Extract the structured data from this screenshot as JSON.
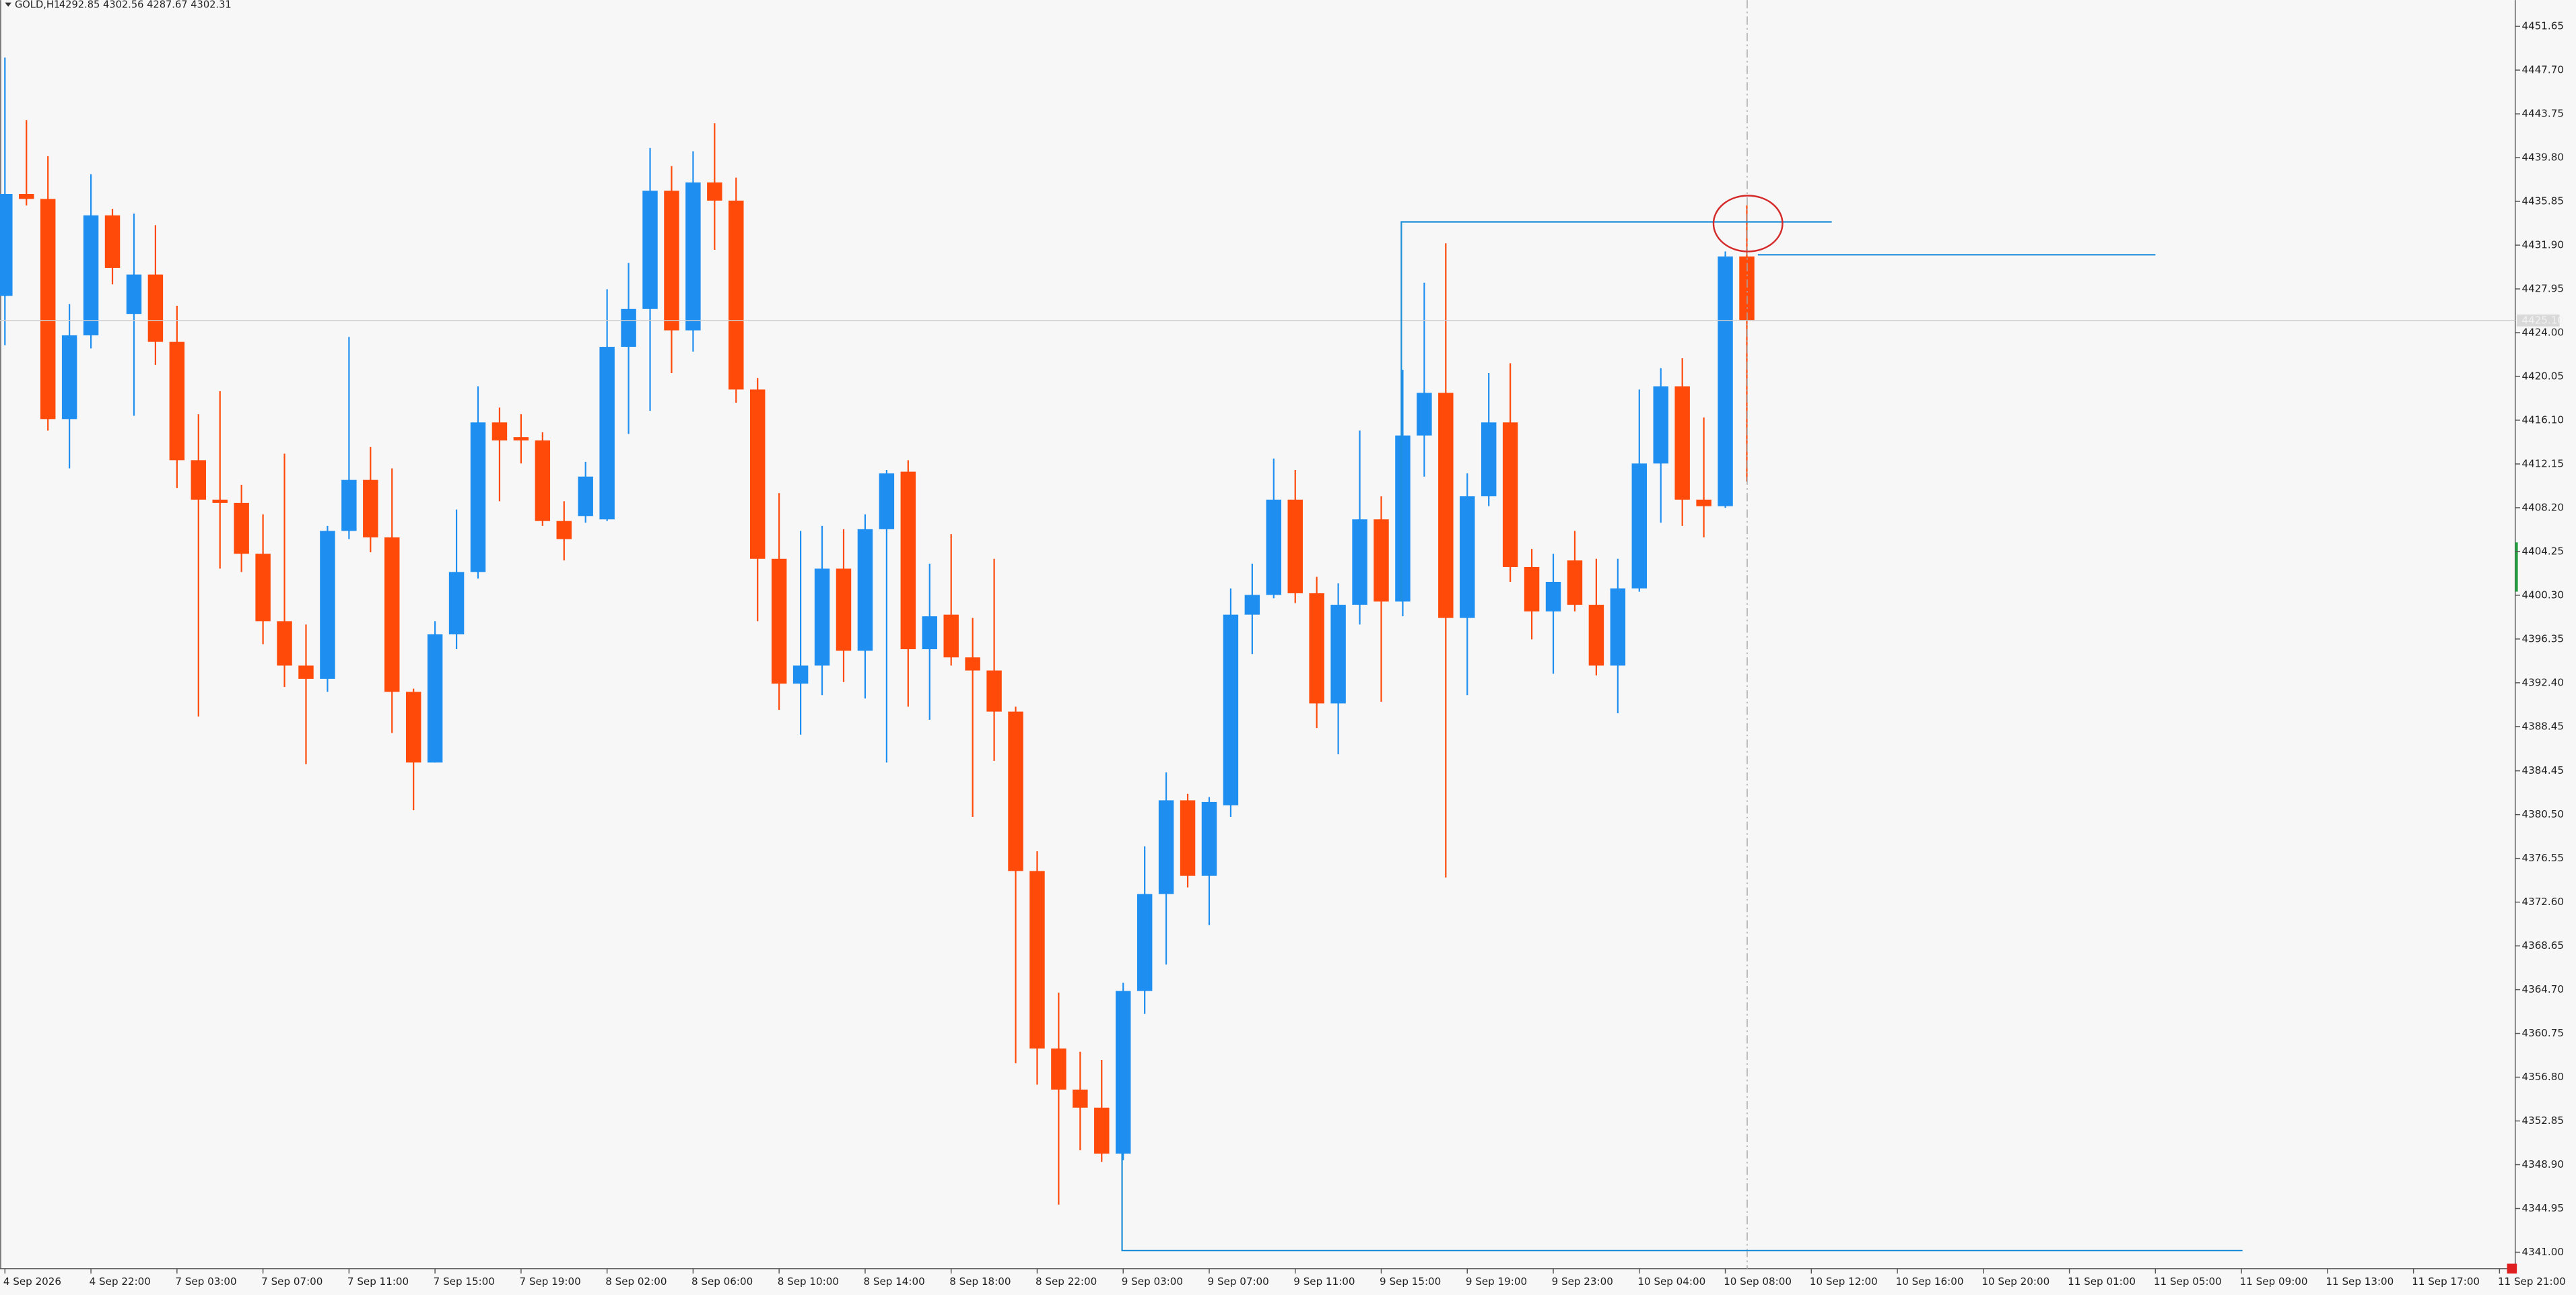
{
  "chart_data": {
    "type": "candlestick",
    "title": "GOLD,H1",
    "subtitle": "4292.85 4302.56 4287.67 4302.31",
    "up_color": "#1e8ff0",
    "down_color": "#ff4a0a",
    "grid": false,
    "last_price_label": "4425.10",
    "ylim": [
      4339.52,
      4454.02
    ],
    "yticks": [
      4451.65,
      {
        "value": 4447.7,
        "label": "4447.70"
      },
      4443.75,
      {
        "value": 4439.8,
        "label": "4439.80"
      },
      4435.85,
      {
        "value": 4431.9,
        "label": "4431.90"
      },
      4427.95,
      {
        "value": 4424,
        "label": "4424.00"
      },
      4420.05,
      {
        "value": 4416.1,
        "label": "4416.10"
      },
      4412.15,
      {
        "value": 4408.2,
        "label": "4408.20"
      },
      4404.25,
      {
        "value": 4400.3,
        "label": "4400.30"
      },
      4396.35,
      {
        "value": 4392.4,
        "label": "4392.40"
      },
      4388.45,
      4384.45,
      {
        "value": 4380.5,
        "label": "4380.50"
      },
      4376.55,
      {
        "value": 4372.6,
        "label": "4372.60"
      },
      4368.65,
      {
        "value": 4364.7,
        "label": "4364.70"
      },
      4360.75,
      {
        "value": 4356.8,
        "label": "4356.80"
      },
      4352.85,
      {
        "value": 4348.9,
        "label": "4348.90"
      },
      4344.95,
      {
        "value": 4341,
        "label": "4341.00"
      }
    ],
    "categories": [
      "4 Sep 2026",
      null,
      null,
      null,
      "4 Sep 22:00",
      null,
      null,
      null,
      "7 Sep 03:00",
      null,
      null,
      null,
      "7 Sep 07:00",
      null,
      null,
      null,
      "7 Sep 11:00",
      null,
      null,
      null,
      "7 Sep 15:00",
      null,
      null,
      null,
      "7 Sep 19:00",
      null,
      null,
      null,
      "8 Sep 02:00",
      null,
      null,
      null,
      "8 Sep 06:00",
      null,
      null,
      null,
      "8 Sep 10:00",
      null,
      null,
      null,
      "8 Sep 14:00",
      null,
      null,
      null,
      "8 Sep 18:00",
      null,
      null,
      null,
      "8 Sep 22:00",
      null,
      null,
      null,
      "9 Sep 03:00",
      null,
      null,
      null,
      "9 Sep 07:00",
      null,
      null,
      null,
      "9 Sep 11:00",
      null,
      null,
      null,
      "9 Sep 15:00",
      null,
      null,
      null,
      "9 Sep 19:00",
      null,
      null,
      null,
      "9 Sep 23:00",
      null,
      null,
      null,
      "10 Sep 04:00",
      null,
      null,
      null,
      "10 Sep 08:00",
      null,
      null,
      null,
      "10 Sep 12:00",
      null,
      null,
      null,
      "10 Sep 16:00",
      null,
      null,
      null,
      "10 Sep 20:00",
      null,
      null,
      null,
      "11 Sep 01:00",
      null,
      null,
      null,
      "11 Sep 05:00",
      null,
      null,
      null,
      "11 Sep 09:00",
      null,
      null,
      null,
      "11 Sep 13:00",
      null,
      null,
      null,
      "11 Sep 17:00",
      null,
      null,
      null,
      "11 Sep 21:00"
    ],
    "open": [
      4427.32,
      4436.52,
      4436.07,
      4416.2,
      4423.76,
      4434.59,
      4425.69,
      4429.25,
      4423.17,
      4412.49,
      4408.93,
      4408.63,
      4404.04,
      4397.96,
      4393.95,
      4392.76,
      4406.11,
      4410.71,
      4405.52,
      4391.58,
      4385.2,
      4396.77,
      4402.4,
      4415.9,
      4414.57,
      4414.27,
      4407.0,
      4407.45,
      4407.15,
      4422.72,
      4426.14,
      4436.81,
      4424.21,
      4437.56,
      4435.92,
      4418.87,
      4403.59,
      4392.32,
      4393.95,
      4402.7,
      4395.29,
      4406.26,
      4411.45,
      4395.43,
      4398.55,
      4394.69,
      4393.51,
      4389.8,
      4375.41,
      4359.39,
      4355.68,
      4354.05,
      4349.9,
      4364.58,
      4373.33,
      4381.79,
      4374.97,
      4381.34,
      4398.55,
      4400.33,
      4408.93,
      4400.48,
      4390.54,
      4399.44,
      4407.15,
      4399.73,
      4414.72,
      4418.57,
      4398.25,
      4409.23,
      4415.9,
      4402.85,
      4398.84,
      4403.44,
      4399.44,
      4393.95,
      4400.92,
      4412.19,
      4419.16,
      4408.93,
      4408.34,
      4430.88,
      null,
      null,
      null,
      null,
      null,
      null,
      null,
      null,
      null,
      null,
      null,
      null,
      null,
      null,
      null,
      null,
      null,
      null,
      null,
      null,
      null,
      null,
      null,
      null,
      null,
      null,
      null,
      null,
      null,
      null,
      null,
      null,
      null,
      null,
      null
    ],
    "high": [
      4448.83,
      4443.19,
      4439.93,
      4426.58,
      4438.3,
      4435.18,
      4434.74,
      4433.7,
      4426.43,
      4416.64,
      4418.72,
      4410.27,
      4407.6,
      4413.08,
      4397.66,
      4406.56,
      4423.61,
      4413.68,
      4411.75,
      4391.87,
      4397.96,
      4408.04,
      4419.16,
      4417.24,
      4416.64,
      4415.01,
      4408.78,
      4412.34,
      4427.92,
      4430.29,
      4440.67,
      4439.04,
      4440.37,
      4442.9,
      4438.0,
      4419.91,
      4409.52,
      4406.11,
      4406.56,
      4406.26,
      4407.6,
      4411.6,
      4412.49,
      4403.15,
      4405.82,
      4398.25,
      4403.59,
      4390.24,
      4377.19,
      4364.43,
      4359.1,
      4358.35,
      4365.32,
      4377.64,
      4384.31,
      4382.38,
      4382.08,
      4400.92,
      4403.15,
      4412.64,
      4411.6,
      4401.96,
      4401.37,
      4415.16,
      4409.23,
      4420.65,
      4428.51,
      4432.07,
      4411.3,
      4420.35,
      4421.24,
      4404.48,
      4404.04,
      4406.11,
      4403.59,
      4403.59,
      4418.87,
      4420.8,
      4421.69,
      4416.35,
      4431.33,
      4435.48,
      null,
      null,
      null,
      null,
      null,
      null,
      null,
      null,
      null,
      null,
      null,
      null,
      null,
      null,
      null,
      null,
      null,
      null,
      null,
      null,
      null,
      null,
      null,
      null,
      null,
      null,
      null,
      null,
      null,
      null,
      null,
      null,
      null,
      null,
      null
    ],
    "low": [
      4422.87,
      4435.48,
      4415.16,
      4411.75,
      4422.58,
      4428.36,
      4416.5,
      4421.09,
      4409.97,
      4389.35,
      4402.7,
      4402.4,
      4395.88,
      4392.02,
      4385.05,
      4391.58,
      4405.37,
      4404.18,
      4387.87,
      4380.9,
      4385.2,
      4395.43,
      4401.81,
      4408.78,
      4412.19,
      4406.56,
      4403.44,
      4406.85,
      4407.0,
      4414.86,
      4416.94,
      4420.35,
      4422.28,
      4431.48,
      4417.68,
      4397.96,
      4389.95,
      4387.72,
      4391.28,
      4392.47,
      4390.98,
      4385.2,
      4390.24,
      4389.06,
      4393.95,
      4380.3,
      4385.35,
      4358.06,
      4356.13,
      4345.3,
      4350.2,
      4349.16,
      4349.31,
      4362.51,
      4366.96,
      4373.93,
      4370.52,
      4380.3,
      4394.99,
      4400.03,
      4399.59,
      4388.31,
      4385.94,
      4397.66,
      4390.69,
      4398.4,
      4411.01,
      4374.82,
      4391.28,
      4408.34,
      4401.51,
      4396.32,
      4393.21,
      4398.84,
      4393.06,
      4389.65,
      4400.62,
      4406.85,
      4406.56,
      4405.52,
      4408.19,
      4410.56,
      null,
      null,
      null,
      null,
      null,
      null,
      null,
      null,
      null,
      null,
      null,
      null,
      null,
      null,
      null,
      null,
      null,
      null,
      null,
      null,
      null,
      null,
      null,
      null,
      null,
      null,
      null,
      null,
      null,
      null,
      null,
      null,
      null,
      null,
      null
    ],
    "close": [
      4436.52,
      4436.07,
      4416.2,
      4423.76,
      4434.59,
      4429.84,
      4429.25,
      4423.17,
      4412.49,
      4408.93,
      4408.63,
      4404.04,
      4397.96,
      4393.95,
      4392.76,
      4406.11,
      4410.71,
      4405.52,
      4391.58,
      4385.2,
      4396.77,
      4402.4,
      4415.9,
      4414.27,
      4414.27,
      4407.0,
      4405.37,
      4411.01,
      4422.72,
      4426.14,
      4436.81,
      4424.21,
      4437.56,
      4435.92,
      4418.87,
      4403.59,
      4392.32,
      4393.95,
      4402.7,
      4395.29,
      4406.26,
      4411.3,
      4395.43,
      4398.4,
      4394.69,
      4393.51,
      4389.8,
      4375.41,
      4359.39,
      4355.68,
      4354.05,
      4349.9,
      4364.58,
      4373.33,
      4381.79,
      4374.97,
      4381.64,
      4398.55,
      4400.33,
      4408.93,
      4400.48,
      4390.54,
      4399.44,
      4407.15,
      4399.73,
      4414.72,
      4418.57,
      4398.25,
      4409.23,
      4415.9,
      4402.85,
      4398.84,
      4401.51,
      4399.44,
      4393.95,
      4400.92,
      4412.19,
      4419.16,
      4408.93,
      4408.34,
      4430.88,
      4425.1,
      null,
      null,
      null,
      null,
      null,
      null,
      null,
      null,
      null,
      null,
      null,
      null,
      null,
      null,
      null,
      null,
      null,
      null,
      null,
      null,
      null,
      null,
      null,
      null,
      null,
      null,
      null,
      null,
      null,
      null,
      null,
      null,
      null,
      null,
      null
    ]
  }
}
